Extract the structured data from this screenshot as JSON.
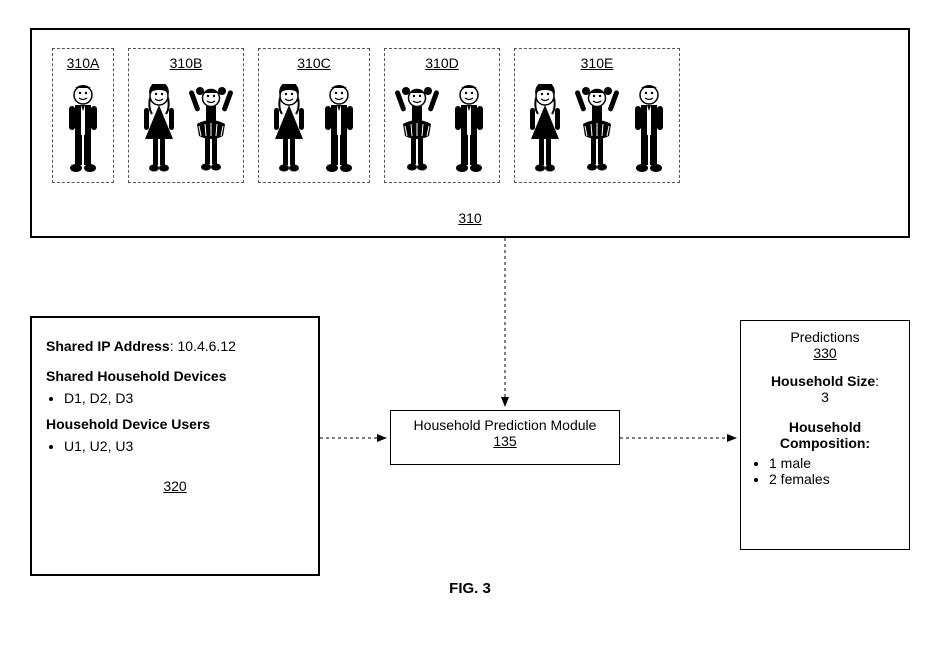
{
  "figure_label": "FIG. 3",
  "top": {
    "ref": "310",
    "cards": [
      {
        "label": "310A",
        "people": [
          "man"
        ]
      },
      {
        "label": "310B",
        "people": [
          "woman",
          "girl"
        ]
      },
      {
        "label": "310C",
        "people": [
          "woman",
          "man"
        ]
      },
      {
        "label": "310D",
        "people": [
          "girl",
          "man"
        ]
      },
      {
        "label": "310E",
        "people": [
          "woman",
          "girl",
          "man"
        ]
      }
    ]
  },
  "left": {
    "ref": "320",
    "ip_label": "Shared IP Address",
    "ip_value": "10.4.6.12",
    "devices_label": "Shared Household Devices",
    "devices_value": "D1, D2, D3",
    "users_label": "Household Device Users",
    "users_value": "U1, U2, U3"
  },
  "center": {
    "title": "Household Prediction Module",
    "ref": "135"
  },
  "right": {
    "title": "Predictions",
    "ref": "330",
    "size_label": "Household Size",
    "size_value": "3",
    "comp_label": "Household Composition:",
    "items": [
      "1 male",
      "2 females"
    ]
  },
  "style": {
    "stroke": "#000000",
    "dash": "3,3",
    "font_family": "Arial",
    "bg": "#ffffff"
  }
}
